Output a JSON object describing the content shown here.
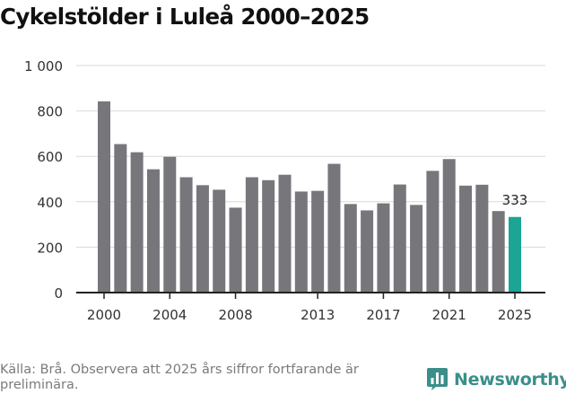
{
  "chart_data": {
    "type": "bar",
    "title": "Cykelstölder i Luleå 2000–2025",
    "xlabel": "",
    "ylabel": "",
    "ylim": [
      0,
      1000
    ],
    "y_ticks": [
      0,
      200,
      400,
      600,
      800,
      1000
    ],
    "y_tick_labels": [
      "0",
      "200",
      "400",
      "600",
      "800",
      "1 000"
    ],
    "x_tick_labels": [
      "2000",
      "2004",
      "2008",
      "2013",
      "2017",
      "2021",
      "2025"
    ],
    "x_tick_years": [
      2000,
      2004,
      2008,
      2013,
      2017,
      2021,
      2025
    ],
    "grid": true,
    "categories": [
      2000,
      2001,
      2002,
      2003,
      2004,
      2005,
      2006,
      2007,
      2008,
      2009,
      2010,
      2011,
      2012,
      2013,
      2014,
      2015,
      2016,
      2017,
      2018,
      2019,
      2020,
      2021,
      2022,
      2023,
      2024,
      2025
    ],
    "values": [
      842,
      654,
      618,
      543,
      598,
      508,
      473,
      453,
      374,
      508,
      495,
      519,
      445,
      448,
      567,
      390,
      362,
      393,
      476,
      386,
      536,
      588,
      471,
      475,
      359,
      333
    ],
    "bar_color": "#77767b",
    "highlight_color": "#1aa594",
    "highlight_index": 25,
    "annotation": {
      "index": 25,
      "label": "333"
    }
  },
  "source": "Källa: Brå. Observera att 2025 års siffror fortfarande är preliminära.",
  "brand": {
    "name": "Newsworthy",
    "icon": "bar-chart-logo-icon",
    "color": "#3a8f8a"
  },
  "colors": {
    "axis": "#222222",
    "grid": "#d9d9d9",
    "text": "#333333"
  }
}
